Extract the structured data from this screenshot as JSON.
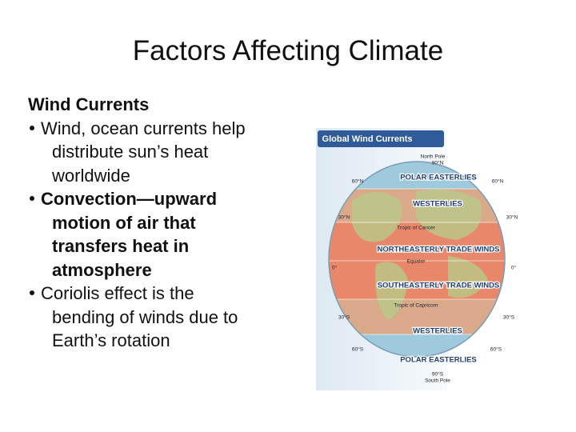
{
  "slide": {
    "title": "Factors Affecting Climate",
    "heading": "Wind Currents",
    "bullets": [
      {
        "bold": false,
        "lines": [
          "Wind, ocean currents help",
          "distribute sun’s heat",
          "worldwide"
        ]
      },
      {
        "bold": true,
        "lines": [
          "Convection—upward",
          "motion of air that",
          "transfers heat in",
          "atmosphere"
        ]
      },
      {
        "bold": false,
        "lines": [
          "Coriolis effect is the",
          "bending of winds due to",
          "Earth’s rotation"
        ]
      }
    ],
    "figure": {
      "title": "Global Wind Currents",
      "labels": [
        "North Pole",
        "90°N",
        "60°N",
        "60°N",
        "POLAR EASTERLIES",
        "WESTERLIES",
        "30°N",
        "30°N",
        "Tropic of Cancer",
        "NORTHEASTERLY TRADE WINDS",
        "Equator",
        "0°",
        "0°",
        "SOUTHEASTERLY TRADE WINDS",
        "Tropic of Capricorn",
        "30°S",
        "30°S",
        "WESTERLIES",
        "60°S",
        "60°S",
        "POLAR EASTERLIES",
        "90°S",
        "South Pole"
      ]
    }
  }
}
